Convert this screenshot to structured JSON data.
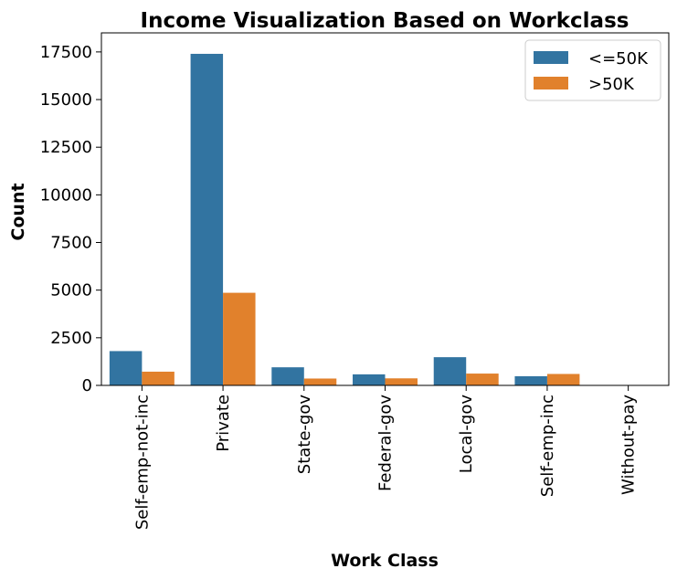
{
  "chart_data": {
    "type": "bar",
    "title": "Income Visualization Based on Workclass",
    "xlabel": "Work Class",
    "ylabel": "Count",
    "categories": [
      "Self-emp-not-inc",
      "Private",
      "State-gov",
      "Federal-gov",
      "Local-gov",
      "Self-emp-inc",
      "Without-pay"
    ],
    "series": [
      {
        "name": "<=50K",
        "color": "#3274a1",
        "values": [
          1800,
          17400,
          950,
          580,
          1480,
          480,
          20
        ]
      },
      {
        "name": ">50K",
        "color": "#e1812c",
        "values": [
          720,
          4860,
          360,
          370,
          620,
          600,
          0
        ]
      }
    ],
    "ylim": [
      0,
      18500
    ],
    "yticks": [
      0,
      2500,
      5000,
      7500,
      10000,
      12500,
      15000,
      17500
    ],
    "grid": false,
    "legend_position": "top-right"
  }
}
